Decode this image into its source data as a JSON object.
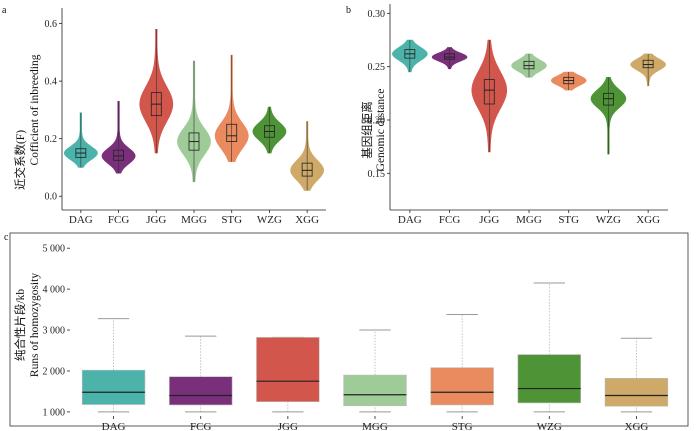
{
  "colors": {
    "DAG": "#4bb3aa",
    "FCG": "#7a2f7a",
    "JGG": "#d2564b",
    "MGG": "#9fcb98",
    "STG": "#e98b5e",
    "WZG": "#4e9436",
    "XGG": "#cfa967"
  },
  "chart_data": [
    {
      "panel": "a",
      "type": "violin",
      "ylabel_cn": "近交系数(F)",
      "ylabel_en": "Cofficient of inbreeding",
      "categories": [
        "DAG",
        "FCG",
        "JGG",
        "MGG",
        "STG",
        "WZG",
        "XGG"
      ],
      "ylim": [
        -0.02,
        0.64
      ],
      "yticks": [
        "0.0",
        "0.2",
        "0.4",
        "0.6"
      ],
      "ytick_values": [
        0.0,
        0.2,
        0.4,
        0.6
      ],
      "groups": [
        {
          "name": "DAG",
          "min": 0.1,
          "q1": 0.135,
          "median": 0.15,
          "q3": 0.165,
          "max": 0.29
        },
        {
          "name": "FCG",
          "min": 0.08,
          "q1": 0.125,
          "median": 0.14,
          "q3": 0.16,
          "max": 0.33
        },
        {
          "name": "JGG",
          "min": 0.15,
          "q1": 0.28,
          "median": 0.32,
          "q3": 0.36,
          "max": 0.58
        },
        {
          "name": "MGG",
          "min": 0.05,
          "q1": 0.16,
          "median": 0.19,
          "q3": 0.22,
          "max": 0.47
        },
        {
          "name": "STG",
          "min": 0.12,
          "q1": 0.19,
          "median": 0.21,
          "q3": 0.25,
          "max": 0.49
        },
        {
          "name": "WZG",
          "min": 0.15,
          "q1": 0.205,
          "median": 0.225,
          "q3": 0.245,
          "max": 0.31
        },
        {
          "name": "XGG",
          "min": 0.02,
          "q1": 0.07,
          "median": 0.09,
          "q3": 0.115,
          "max": 0.26
        }
      ]
    },
    {
      "panel": "b",
      "type": "violin",
      "ylabel_cn": "基因组距离",
      "ylabel_en": "Genomic distance",
      "categories": [
        "DAG",
        "FCG",
        "JGG",
        "MGG",
        "STG",
        "WZG",
        "XGG"
      ],
      "ylim": [
        0.125,
        0.305
      ],
      "yticks": [
        "0.15",
        "0.20",
        "0.25",
        "0.30"
      ],
      "ytick_values": [
        0.15,
        0.2,
        0.25,
        0.3
      ],
      "groups": [
        {
          "name": "DAG",
          "min": 0.245,
          "q1": 0.258,
          "median": 0.262,
          "q3": 0.266,
          "max": 0.275
        },
        {
          "name": "FCG",
          "min": 0.248,
          "q1": 0.257,
          "median": 0.259,
          "q3": 0.262,
          "max": 0.268
        },
        {
          "name": "JGG",
          "min": 0.17,
          "q1": 0.215,
          "median": 0.228,
          "q3": 0.238,
          "max": 0.275
        },
        {
          "name": "MGG",
          "min": 0.24,
          "q1": 0.248,
          "median": 0.251,
          "q3": 0.255,
          "max": 0.262
        },
        {
          "name": "STG",
          "min": 0.228,
          "q1": 0.234,
          "median": 0.237,
          "q3": 0.24,
          "max": 0.245
        },
        {
          "name": "WZG",
          "min": 0.168,
          "q1": 0.214,
          "median": 0.22,
          "q3": 0.225,
          "max": 0.24
        },
        {
          "name": "XGG",
          "min": 0.232,
          "q1": 0.249,
          "median": 0.252,
          "q3": 0.256,
          "max": 0.262
        }
      ]
    },
    {
      "panel": "c",
      "type": "box",
      "ylabel_cn": "纯合性片段/kb",
      "ylabel_en": "Runs of homozygosity",
      "categories": [
        "DAG",
        "FCG",
        "JGG",
        "MGG",
        "STG",
        "WZG",
        "XGG"
      ],
      "ylim": [
        900,
        5200
      ],
      "yticks": [
        "1 000",
        "2 000",
        "3 000",
        "4 000",
        "5 000"
      ],
      "ytick_values": [
        1000,
        2000,
        3000,
        4000,
        5000
      ],
      "groups": [
        {
          "name": "DAG",
          "min": 1000,
          "q1": 1180,
          "median": 1480,
          "q3": 2020,
          "max": 3280
        },
        {
          "name": "FCG",
          "min": 1000,
          "q1": 1170,
          "median": 1400,
          "q3": 1860,
          "max": 2850
        },
        {
          "name": "JGG",
          "min": 1000,
          "q1": 1250,
          "median": 1750,
          "q3": 2820,
          "max": 2820
        },
        {
          "name": "MGG",
          "min": 1000,
          "q1": 1150,
          "median": 1420,
          "q3": 1900,
          "max": 3000
        },
        {
          "name": "STG",
          "min": 1000,
          "q1": 1170,
          "median": 1480,
          "q3": 2080,
          "max": 3380
        },
        {
          "name": "WZG",
          "min": 1000,
          "q1": 1220,
          "median": 1570,
          "q3": 2400,
          "max": 4150
        },
        {
          "name": "XGG",
          "min": 1000,
          "q1": 1140,
          "median": 1400,
          "q3": 1820,
          "max": 2800
        }
      ]
    }
  ]
}
